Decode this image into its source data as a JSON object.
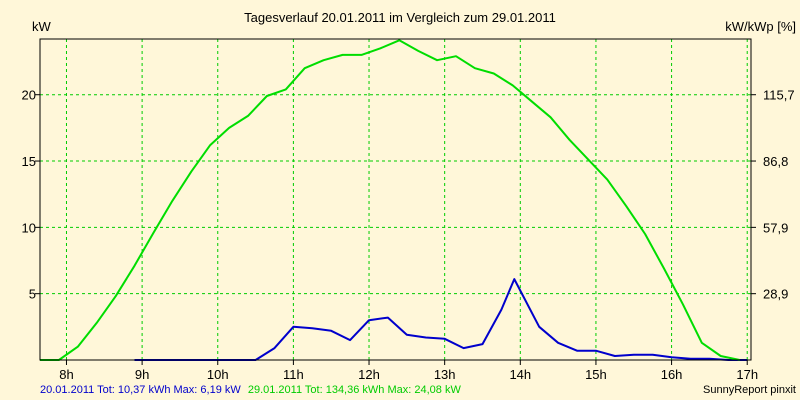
{
  "chart_data": {
    "type": "line",
    "title": "Tagesverlauf 20.01.2011 im Vergleich zum 29.01.2011",
    "ylabel_left": "kW",
    "ylabel_right": "kW/kWp [%]",
    "xlim": [
      7.65,
      17.05
    ],
    "ylim": [
      0,
      24.2
    ],
    "x_ticks": [
      8,
      9,
      10,
      11,
      12,
      13,
      14,
      15,
      16,
      17
    ],
    "x_tick_labels": [
      "8h",
      "9h",
      "10h",
      "11h",
      "12h",
      "13h",
      "14h",
      "15h",
      "16h",
      "17h"
    ],
    "y_ticks_left": [
      5,
      10,
      15,
      20
    ],
    "y_tick_labels_left": [
      "5",
      "10",
      "15",
      "20"
    ],
    "y_ticks_right_values": [
      5,
      10,
      15,
      20
    ],
    "y_tick_labels_right": [
      "28,9",
      "57,9",
      "86,8",
      "115,7"
    ],
    "grid": true,
    "series": [
      {
        "name": "20.01.2011",
        "color": "#0000cc",
        "x": [
          8.9,
          9.25,
          9.5,
          9.75,
          10.0,
          10.25,
          10.5,
          10.75,
          11.0,
          11.25,
          11.5,
          11.75,
          12.0,
          12.25,
          12.5,
          12.75,
          13.0,
          13.25,
          13.5,
          13.75,
          13.92,
          14.25,
          14.5,
          14.75,
          15.0,
          15.25,
          15.5,
          15.75,
          16.0,
          16.25,
          16.5,
          16.75,
          17.0
        ],
        "values": [
          0,
          0,
          0,
          0,
          0,
          0,
          0,
          0.9,
          2.5,
          2.4,
          2.2,
          1.5,
          3.0,
          3.2,
          1.9,
          1.7,
          1.6,
          0.9,
          1.2,
          3.8,
          6.1,
          2.5,
          1.3,
          0.7,
          0.7,
          0.3,
          0.4,
          0.4,
          0.2,
          0.1,
          0.1,
          0,
          0
        ]
      },
      {
        "name": "29.01.2011",
        "color": "#00dd00",
        "x": [
          7.65,
          7.9,
          8.15,
          8.4,
          8.65,
          8.9,
          9.15,
          9.4,
          9.65,
          9.9,
          10.15,
          10.4,
          10.65,
          10.9,
          11.15,
          11.4,
          11.65,
          11.9,
          12.15,
          12.4,
          12.65,
          12.9,
          13.15,
          13.4,
          13.65,
          13.9,
          14.15,
          14.4,
          14.65,
          14.9,
          15.15,
          15.4,
          15.65,
          15.9,
          16.15,
          16.4,
          16.65,
          16.9
        ],
        "values": [
          0,
          0,
          1.0,
          2.8,
          4.8,
          7.1,
          9.6,
          12.0,
          14.2,
          16.2,
          17.5,
          18.4,
          19.9,
          20.4,
          22.0,
          22.6,
          23.0,
          23.0,
          23.5,
          24.1,
          23.3,
          22.6,
          22.9,
          22.0,
          21.6,
          20.7,
          19.5,
          18.3,
          16.6,
          15.1,
          13.6,
          11.6,
          9.5,
          6.9,
          4.2,
          1.3,
          0.3,
          0
        ]
      }
    ],
    "footer_left": [
      {
        "text": "20.01.2011  Tot: 10,37 kWh  Max: 6,19 kW",
        "color": "#0000cc"
      },
      {
        "text": "29.01.2011  Tot: 134,36 kWh  Max: 24,08 kW",
        "color": "#00cc00"
      }
    ],
    "footer_right": "SunnyReport pinxit",
    "colors": {
      "background": "#fff7d9",
      "grid": "#00cc00",
      "axis": "#000000"
    }
  }
}
